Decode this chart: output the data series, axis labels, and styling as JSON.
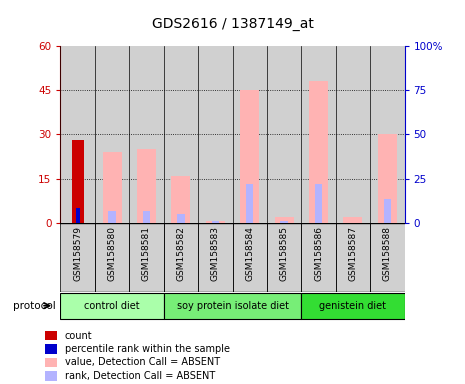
{
  "title": "GDS2616 / 1387149_at",
  "samples": [
    "GSM158579",
    "GSM158580",
    "GSM158581",
    "GSM158582",
    "GSM158583",
    "GSM158584",
    "GSM158585",
    "GSM158586",
    "GSM158587",
    "GSM158588"
  ],
  "count_values": [
    28.0,
    0,
    0,
    0,
    0,
    0,
    0,
    0,
    0,
    0
  ],
  "pct_rank_values": [
    5.0,
    0,
    0,
    0,
    0,
    0,
    0,
    0,
    0,
    0
  ],
  "absent_value_values": [
    0,
    24.0,
    25.0,
    16.0,
    0.5,
    45.0,
    2.0,
    48.0,
    2.0,
    30.0
  ],
  "absent_rank_values": [
    0,
    4.0,
    4.0,
    3.0,
    0.5,
    13.0,
    0.5,
    13.0,
    0,
    8.0
  ],
  "ylim_left": [
    0,
    60
  ],
  "ylim_right": [
    0,
    100
  ],
  "yticks_left": [
    0,
    15,
    30,
    45,
    60
  ],
  "yticks_right": [
    0,
    25,
    50,
    75,
    100
  ],
  "ytick_labels_left": [
    "0",
    "15",
    "30",
    "45",
    "60"
  ],
  "ytick_labels_right": [
    "0",
    "25",
    "50",
    "75",
    "100%"
  ],
  "groups": [
    {
      "label": "control diet",
      "indices": [
        0,
        1,
        2
      ],
      "color": "#aaffaa"
    },
    {
      "label": "soy protein isolate diet",
      "indices": [
        3,
        4,
        5,
        6
      ],
      "color": "#77ee77"
    },
    {
      "label": "genistein diet",
      "indices": [
        7,
        8,
        9
      ],
      "color": "#33dd33"
    }
  ],
  "color_count": "#cc0000",
  "color_pct_rank": "#0000cc",
  "color_absent_value": "#ffb3b3",
  "color_absent_rank": "#b3b3ff",
  "bg_color_sample": "#d0d0d0",
  "left_axis_color": "#cc0000",
  "right_axis_color": "#0000cc",
  "legend_items": [
    {
      "label": "count",
      "color": "#cc0000"
    },
    {
      "label": "percentile rank within the sample",
      "color": "#0000cc"
    },
    {
      "label": "value, Detection Call = ABSENT",
      "color": "#ffb3b3"
    },
    {
      "label": "rank, Detection Call = ABSENT",
      "color": "#b3b3ff"
    }
  ]
}
